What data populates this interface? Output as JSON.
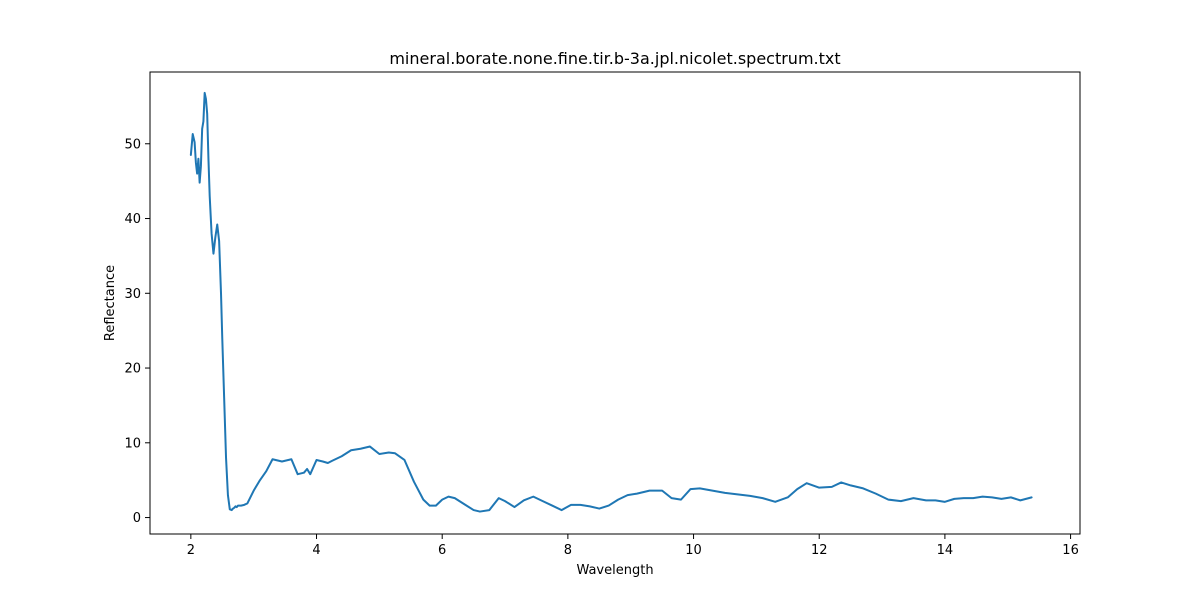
{
  "chart_data": {
    "type": "line",
    "title": "mineral.borate.none.fine.tir.b-3a.jpl.nicolet.spectrum.txt",
    "xlabel": "Wavelength",
    "ylabel": "Reflectance",
    "xlim": [
      1.35,
      16.15
    ],
    "ylim": [
      -2.2,
      59.6
    ],
    "xticks": [
      2,
      4,
      6,
      8,
      10,
      12,
      14,
      16
    ],
    "yticks": [
      0,
      10,
      20,
      30,
      40,
      50
    ],
    "grid": false,
    "line_color": "#1f77b4",
    "series": [
      {
        "x": [
          2.0,
          2.03,
          2.06,
          2.08,
          2.1,
          2.12,
          2.14,
          2.16,
          2.18,
          2.2,
          2.22,
          2.24,
          2.26,
          2.28,
          2.3,
          2.33,
          2.36,
          2.39,
          2.42,
          2.45,
          2.48,
          2.5,
          2.53,
          2.56,
          2.59,
          2.62,
          2.65,
          2.67,
          2.69,
          2.71,
          2.73,
          2.75,
          2.8,
          2.85,
          2.9,
          3.0,
          3.1,
          3.2,
          3.3,
          3.45,
          3.6,
          3.7,
          3.8,
          3.85,
          3.9,
          4.0,
          4.1,
          4.18,
          4.25,
          4.4,
          4.55,
          4.7,
          4.85,
          5.0,
          5.15,
          5.25,
          5.4,
          5.55,
          5.7,
          5.8,
          5.9,
          6.0,
          6.1,
          6.2,
          6.35,
          6.5,
          6.6,
          6.75,
          6.9,
          7.0,
          7.15,
          7.3,
          7.45,
          7.6,
          7.75,
          7.9,
          8.05,
          8.2,
          8.35,
          8.5,
          8.65,
          8.8,
          8.95,
          9.1,
          9.3,
          9.5,
          9.65,
          9.8,
          9.95,
          10.1,
          10.3,
          10.5,
          10.7,
          10.9,
          11.1,
          11.3,
          11.5,
          11.65,
          11.8,
          12.0,
          12.2,
          12.35,
          12.5,
          12.7,
          12.9,
          13.1,
          13.3,
          13.5,
          13.7,
          13.85,
          14.0,
          14.15,
          14.3,
          14.45,
          14.6,
          14.75,
          14.9,
          15.05,
          15.2,
          15.38
        ],
        "y": [
          48.5,
          51.3,
          50.2,
          47.5,
          46.0,
          48.0,
          44.8,
          47.0,
          52.0,
          53.0,
          56.8,
          56.0,
          54.0,
          48.0,
          43.0,
          38.0,
          35.3,
          37.5,
          39.2,
          37.0,
          30.0,
          24.0,
          16.0,
          8.0,
          3.0,
          1.1,
          1.0,
          1.2,
          1.3,
          1.5,
          1.4,
          1.6,
          1.6,
          1.7,
          1.9,
          3.6,
          5.0,
          6.2,
          7.8,
          7.5,
          7.8,
          5.8,
          6.0,
          6.5,
          5.8,
          7.7,
          7.5,
          7.3,
          7.6,
          8.2,
          9.0,
          9.2,
          9.5,
          8.5,
          8.7,
          8.6,
          7.7,
          4.8,
          2.4,
          1.6,
          1.6,
          2.4,
          2.8,
          2.6,
          1.8,
          1.0,
          0.8,
          1.0,
          2.6,
          2.2,
          1.4,
          2.3,
          2.8,
          2.2,
          1.6,
          1.0,
          1.7,
          1.7,
          1.5,
          1.2,
          1.6,
          2.4,
          3.0,
          3.2,
          3.6,
          3.6,
          2.6,
          2.4,
          3.8,
          3.9,
          3.6,
          3.3,
          3.1,
          2.9,
          2.6,
          2.1,
          2.7,
          3.8,
          4.6,
          4.0,
          4.1,
          4.7,
          4.3,
          3.9,
          3.2,
          2.4,
          2.2,
          2.6,
          2.3,
          2.3,
          2.1,
          2.5,
          2.6,
          2.6,
          2.8,
          2.7,
          2.5,
          2.7,
          2.3,
          2.7
        ]
      }
    ]
  }
}
